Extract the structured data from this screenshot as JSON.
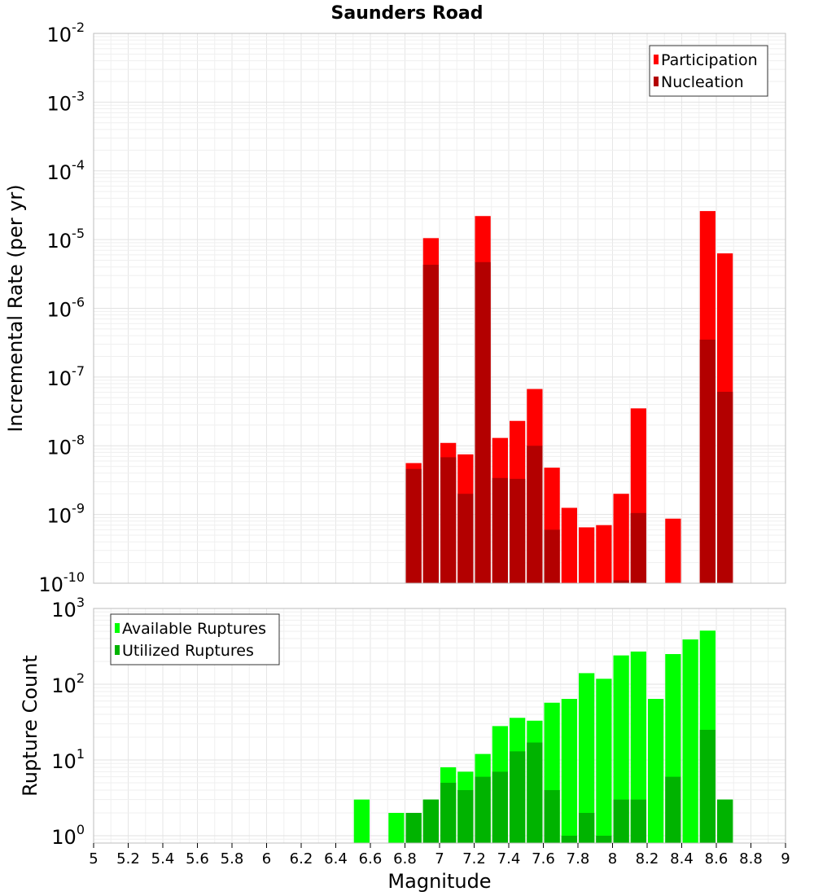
{
  "title": "Saunders Road",
  "chart_data": [
    {
      "type": "bar",
      "panel": "top",
      "ylabel": "Incremental Rate (per yr)",
      "yscale": "log",
      "ylim": [
        1e-10,
        0.01
      ],
      "xlim": [
        5,
        9
      ],
      "bin_width": 0.1,
      "grid": true,
      "legend": {
        "placement": "top-right",
        "entries": [
          "Participation",
          "Nucleation"
        ]
      },
      "y_ticks": [
        {
          "base": "10",
          "exp": "-10",
          "value": 1e-10
        },
        {
          "base": "10",
          "exp": "-9",
          "value": 1e-09
        },
        {
          "base": "10",
          "exp": "-8",
          "value": 1e-08
        },
        {
          "base": "10",
          "exp": "-7",
          "value": 1e-07
        },
        {
          "base": "10",
          "exp": "-6",
          "value": 1e-06
        },
        {
          "base": "10",
          "exp": "-5",
          "value": 1e-05
        },
        {
          "base": "10",
          "exp": "-4",
          "value": 0.0001
        },
        {
          "base": "10",
          "exp": "-3",
          "value": 0.001
        },
        {
          "base": "10",
          "exp": "-2",
          "value": 0.01
        }
      ],
      "series": [
        {
          "name": "Participation",
          "color": "#ff0000",
          "points": [
            {
              "x": 6.85,
              "y": 5.6e-09
            },
            {
              "x": 6.95,
              "y": 1.05e-05
            },
            {
              "x": 7.05,
              "y": 1.1e-08
            },
            {
              "x": 7.15,
              "y": 7.5e-09
            },
            {
              "x": 7.25,
              "y": 2.2e-05
            },
            {
              "x": 7.35,
              "y": 1.3e-08
            },
            {
              "x": 7.45,
              "y": 2.3e-08
            },
            {
              "x": 7.55,
              "y": 6.7e-08
            },
            {
              "x": 7.65,
              "y": 4.8e-09
            },
            {
              "x": 7.75,
              "y": 1.25e-09
            },
            {
              "x": 7.85,
              "y": 6.5e-10
            },
            {
              "x": 7.95,
              "y": 7e-10
            },
            {
              "x": 8.05,
              "y": 2e-09
            },
            {
              "x": 8.15,
              "y": 3.5e-08
            },
            {
              "x": 8.35,
              "y": 8.7e-10
            },
            {
              "x": 8.55,
              "y": 2.6e-05
            },
            {
              "x": 8.65,
              "y": 6.3e-06
            }
          ]
        },
        {
          "name": "Nucleation",
          "color": "#b30000",
          "points": [
            {
              "x": 6.85,
              "y": 4.6e-09
            },
            {
              "x": 6.95,
              "y": 4.3e-06
            },
            {
              "x": 7.05,
              "y": 6.8e-09
            },
            {
              "x": 7.15,
              "y": 2e-09
            },
            {
              "x": 7.25,
              "y": 4.7e-06
            },
            {
              "x": 7.35,
              "y": 3.4e-09
            },
            {
              "x": 7.45,
              "y": 3.3e-09
            },
            {
              "x": 7.55,
              "y": 1e-08
            },
            {
              "x": 7.65,
              "y": 6e-10
            },
            {
              "x": 8.05,
              "y": 1.1e-10
            },
            {
              "x": 8.15,
              "y": 1.05e-09
            },
            {
              "x": 8.55,
              "y": 3.5e-07
            },
            {
              "x": 8.65,
              "y": 6.1e-08
            }
          ]
        }
      ]
    },
    {
      "type": "bar",
      "panel": "bottom",
      "xlabel": "Magnitude",
      "ylabel": "Rupture Count",
      "yscale": "log",
      "ylim": [
        0.8,
        1000
      ],
      "xlim": [
        5,
        9
      ],
      "bin_width": 0.1,
      "grid": true,
      "legend": {
        "placement": "top-left",
        "entries": [
          "Available Ruptures",
          "Utilized Ruptures"
        ]
      },
      "y_ticks": [
        {
          "base": "10",
          "exp": "0",
          "value": 1
        },
        {
          "base": "10",
          "exp": "1",
          "value": 10
        },
        {
          "base": "10",
          "exp": "2",
          "value": 100
        },
        {
          "base": "10",
          "exp": "3",
          "value": 1000
        }
      ],
      "x_ticks": [
        "5",
        "5.2",
        "5.4",
        "5.6",
        "5.8",
        "6",
        "6.2",
        "6.4",
        "6.6",
        "6.8",
        "7",
        "7.2",
        "7.4",
        "7.6",
        "7.8",
        "8",
        "8.2",
        "8.4",
        "8.6",
        "8.8",
        "9"
      ],
      "series": [
        {
          "name": "Available Ruptures",
          "color": "#00ff00",
          "points": [
            {
              "x": 6.55,
              "y": 3
            },
            {
              "x": 6.75,
              "y": 2
            },
            {
              "x": 6.85,
              "y": 2
            },
            {
              "x": 6.95,
              "y": 3
            },
            {
              "x": 7.05,
              "y": 8
            },
            {
              "x": 7.15,
              "y": 7
            },
            {
              "x": 7.25,
              "y": 12
            },
            {
              "x": 7.35,
              "y": 28
            },
            {
              "x": 7.45,
              "y": 36
            },
            {
              "x": 7.55,
              "y": 33
            },
            {
              "x": 7.65,
              "y": 57
            },
            {
              "x": 7.75,
              "y": 64
            },
            {
              "x": 7.85,
              "y": 140
            },
            {
              "x": 7.95,
              "y": 118
            },
            {
              "x": 8.05,
              "y": 240
            },
            {
              "x": 8.15,
              "y": 270
            },
            {
              "x": 8.25,
              "y": 64
            },
            {
              "x": 8.35,
              "y": 250
            },
            {
              "x": 8.45,
              "y": 390
            },
            {
              "x": 8.55,
              "y": 510
            },
            {
              "x": 8.65,
              "y": 3
            }
          ]
        },
        {
          "name": "Utilized Ruptures",
          "color": "#00b300",
          "points": [
            {
              "x": 6.85,
              "y": 2
            },
            {
              "x": 6.95,
              "y": 3
            },
            {
              "x": 7.05,
              "y": 5
            },
            {
              "x": 7.15,
              "y": 4
            },
            {
              "x": 7.25,
              "y": 6
            },
            {
              "x": 7.35,
              "y": 7
            },
            {
              "x": 7.45,
              "y": 13
            },
            {
              "x": 7.55,
              "y": 17
            },
            {
              "x": 7.65,
              "y": 4
            },
            {
              "x": 7.75,
              "y": 1
            },
            {
              "x": 7.85,
              "y": 2
            },
            {
              "x": 7.95,
              "y": 1
            },
            {
              "x": 8.05,
              "y": 3
            },
            {
              "x": 8.15,
              "y": 3
            },
            {
              "x": 8.35,
              "y": 6
            },
            {
              "x": 8.55,
              "y": 25
            },
            {
              "x": 8.65,
              "y": 3
            }
          ]
        }
      ]
    }
  ]
}
